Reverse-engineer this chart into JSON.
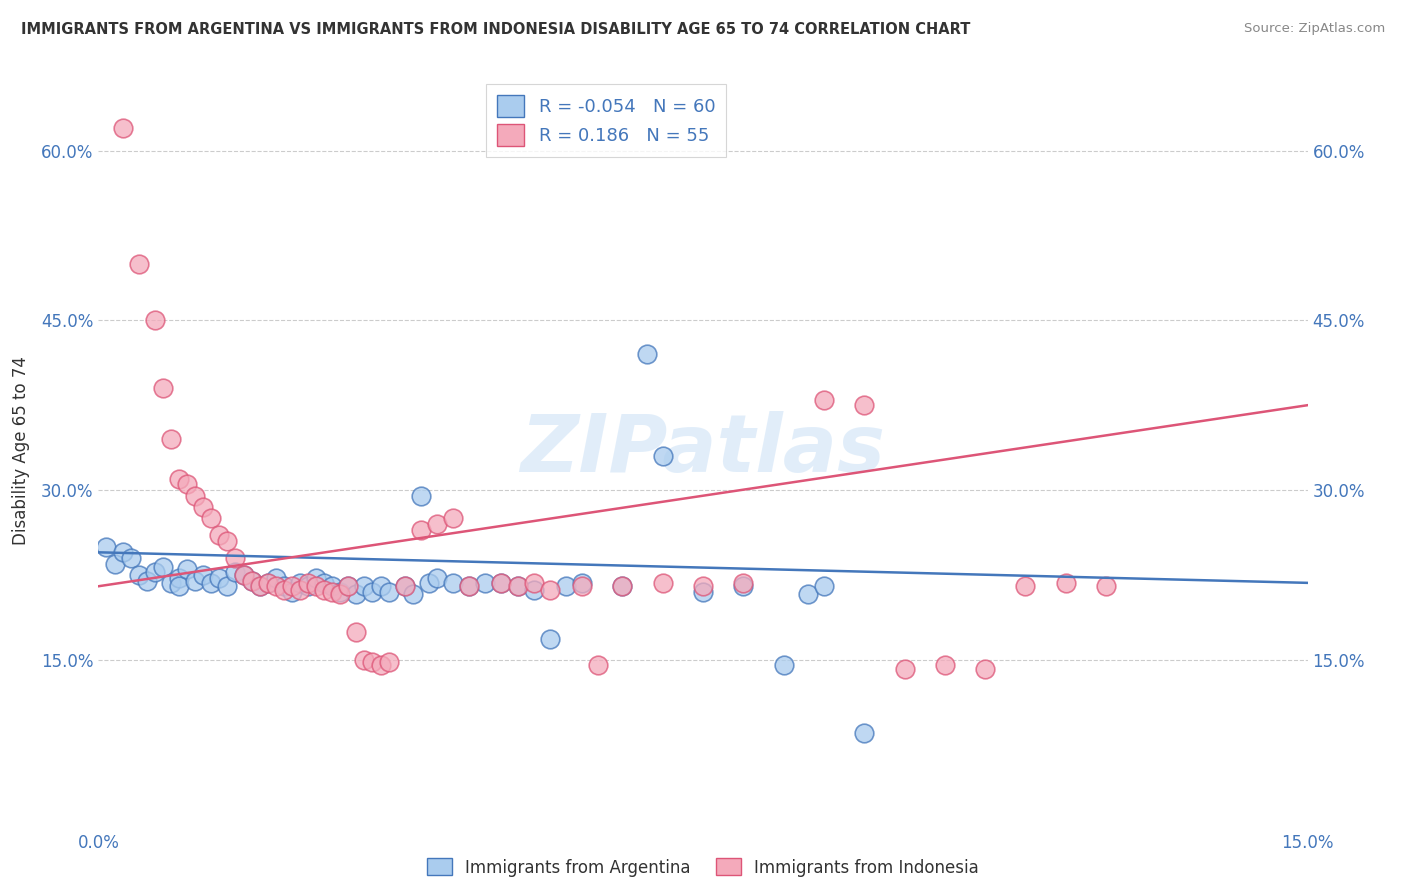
{
  "title": "IMMIGRANTS FROM ARGENTINA VS IMMIGRANTS FROM INDONESIA DISABILITY AGE 65 TO 74 CORRELATION CHART",
  "source": "Source: ZipAtlas.com",
  "ylabel": "Disability Age 65 to 74",
  "xlim": [
    0.0,
    0.15
  ],
  "ylim": [
    0.0,
    0.67
  ],
  "yticks": [
    0.15,
    0.3,
    0.45,
    0.6
  ],
  "ytick_labels": [
    "15.0%",
    "30.0%",
    "45.0%",
    "60.0%"
  ],
  "xtick_labels": [
    "0.0%",
    "15.0%"
  ],
  "watermark": "ZIPatlas",
  "legend_r_argentina": "-0.054",
  "legend_n_argentina": "60",
  "legend_r_indonesia": " 0.186",
  "legend_n_indonesia": "55",
  "argentina_color": "#aaccee",
  "indonesia_color": "#f4aabb",
  "argentina_line_color": "#4477bb",
  "indonesia_line_color": "#dd5577",
  "argentina_trend": [
    0.0,
    0.15,
    0.245,
    0.218
  ],
  "indonesia_trend": [
    0.0,
    0.15,
    0.215,
    0.375
  ],
  "argentina_scatter": [
    [
      0.001,
      0.25
    ],
    [
      0.002,
      0.235
    ],
    [
      0.003,
      0.245
    ],
    [
      0.004,
      0.24
    ],
    [
      0.005,
      0.225
    ],
    [
      0.006,
      0.22
    ],
    [
      0.007,
      0.228
    ],
    [
      0.008,
      0.232
    ],
    [
      0.009,
      0.218
    ],
    [
      0.01,
      0.222
    ],
    [
      0.01,
      0.215
    ],
    [
      0.011,
      0.23
    ],
    [
      0.012,
      0.22
    ],
    [
      0.013,
      0.225
    ],
    [
      0.014,
      0.218
    ],
    [
      0.015,
      0.222
    ],
    [
      0.016,
      0.215
    ],
    [
      0.017,
      0.228
    ],
    [
      0.018,
      0.225
    ],
    [
      0.019,
      0.22
    ],
    [
      0.02,
      0.215
    ],
    [
      0.021,
      0.218
    ],
    [
      0.022,
      0.222
    ],
    [
      0.023,
      0.215
    ],
    [
      0.024,
      0.21
    ],
    [
      0.025,
      0.218
    ],
    [
      0.026,
      0.215
    ],
    [
      0.027,
      0.222
    ],
    [
      0.028,
      0.218
    ],
    [
      0.029,
      0.215
    ],
    [
      0.03,
      0.21
    ],
    [
      0.031,
      0.215
    ],
    [
      0.032,
      0.208
    ],
    [
      0.033,
      0.215
    ],
    [
      0.034,
      0.21
    ],
    [
      0.035,
      0.215
    ],
    [
      0.036,
      0.21
    ],
    [
      0.038,
      0.215
    ],
    [
      0.039,
      0.208
    ],
    [
      0.04,
      0.295
    ],
    [
      0.041,
      0.218
    ],
    [
      0.042,
      0.222
    ],
    [
      0.044,
      0.218
    ],
    [
      0.046,
      0.215
    ],
    [
      0.048,
      0.218
    ],
    [
      0.05,
      0.218
    ],
    [
      0.052,
      0.215
    ],
    [
      0.054,
      0.212
    ],
    [
      0.056,
      0.168
    ],
    [
      0.058,
      0.215
    ],
    [
      0.06,
      0.218
    ],
    [
      0.065,
      0.215
    ],
    [
      0.068,
      0.42
    ],
    [
      0.07,
      0.33
    ],
    [
      0.075,
      0.21
    ],
    [
      0.08,
      0.215
    ],
    [
      0.085,
      0.145
    ],
    [
      0.088,
      0.208
    ],
    [
      0.09,
      0.215
    ],
    [
      0.095,
      0.085
    ]
  ],
  "indonesia_scatter": [
    [
      0.003,
      0.62
    ],
    [
      0.005,
      0.5
    ],
    [
      0.007,
      0.45
    ],
    [
      0.008,
      0.39
    ],
    [
      0.009,
      0.345
    ],
    [
      0.01,
      0.31
    ],
    [
      0.011,
      0.305
    ],
    [
      0.012,
      0.295
    ],
    [
      0.013,
      0.285
    ],
    [
      0.014,
      0.275
    ],
    [
      0.015,
      0.26
    ],
    [
      0.016,
      0.255
    ],
    [
      0.017,
      0.24
    ],
    [
      0.018,
      0.225
    ],
    [
      0.019,
      0.22
    ],
    [
      0.02,
      0.215
    ],
    [
      0.021,
      0.218
    ],
    [
      0.022,
      0.215
    ],
    [
      0.023,
      0.212
    ],
    [
      0.024,
      0.215
    ],
    [
      0.025,
      0.212
    ],
    [
      0.026,
      0.218
    ],
    [
      0.027,
      0.215
    ],
    [
      0.028,
      0.212
    ],
    [
      0.029,
      0.21
    ],
    [
      0.03,
      0.208
    ],
    [
      0.031,
      0.215
    ],
    [
      0.032,
      0.175
    ],
    [
      0.033,
      0.15
    ],
    [
      0.034,
      0.148
    ],
    [
      0.035,
      0.145
    ],
    [
      0.036,
      0.148
    ],
    [
      0.038,
      0.215
    ],
    [
      0.04,
      0.265
    ],
    [
      0.042,
      0.27
    ],
    [
      0.044,
      0.275
    ],
    [
      0.046,
      0.215
    ],
    [
      0.05,
      0.218
    ],
    [
      0.052,
      0.215
    ],
    [
      0.054,
      0.218
    ],
    [
      0.056,
      0.212
    ],
    [
      0.06,
      0.215
    ],
    [
      0.062,
      0.145
    ],
    [
      0.065,
      0.215
    ],
    [
      0.07,
      0.218
    ],
    [
      0.075,
      0.215
    ],
    [
      0.08,
      0.218
    ],
    [
      0.09,
      0.38
    ],
    [
      0.095,
      0.375
    ],
    [
      0.1,
      0.142
    ],
    [
      0.105,
      0.145
    ],
    [
      0.11,
      0.142
    ],
    [
      0.115,
      0.215
    ],
    [
      0.12,
      0.218
    ],
    [
      0.125,
      0.215
    ]
  ]
}
